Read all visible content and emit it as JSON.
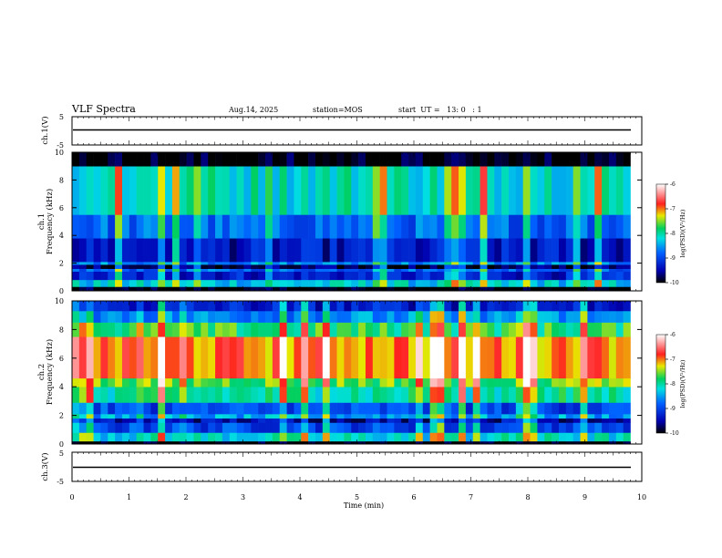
{
  "header": {
    "title": "VLF Spectra",
    "date": "Aug.14, 2025",
    "station": "station=MOS",
    "start_ut": "start  UT =   13: 0   : 1"
  },
  "chart_data": {
    "type": "heatmap",
    "xlabel": "Time (min)",
    "xlim": [
      0,
      10
    ],
    "x_ticks": [
      "0",
      "1",
      "2",
      "3",
      "4",
      "5",
      "6",
      "7",
      "8",
      "9",
      "10"
    ],
    "panels": [
      {
        "id": "ch1_waveform",
        "ylabel": "ch.1(V)",
        "ylim": [
          -5,
          5
        ],
        "y_ticks": [
          "5",
          "-5"
        ],
        "series": [
          {
            "x": [
              0,
              9.8
            ],
            "y": [
              0,
              0
            ]
          }
        ]
      },
      {
        "id": "ch1_spectrogram",
        "ylabel_line1": "ch.1",
        "ylabel_line2": "Frequency (kHz)",
        "ylim": [
          0,
          10
        ],
        "y_ticks": [
          "0",
          "2",
          "4",
          "6",
          "8",
          "10"
        ],
        "data_end_min": 9.8,
        "bands_khz": [
          {
            "range": [
              0,
              0.3
            ],
            "level": -10
          },
          {
            "range": [
              0.3,
              0.8
            ],
            "level": -8.3
          },
          {
            "range": [
              0.8,
              1.4
            ],
            "level": -9.3
          },
          {
            "range": [
              1.4,
              1.6
            ],
            "level": -8.8
          },
          {
            "range": [
              1.6,
              1.9
            ],
            "level": -9.8
          },
          {
            "range": [
              1.9,
              2.1
            ],
            "level": -8.6
          },
          {
            "range": [
              2.1,
              3.8
            ],
            "level": -9.4
          },
          {
            "range": [
              3.8,
              5.5
            ],
            "level": -8.8
          },
          {
            "range": [
              5.5,
              9.0
            ],
            "level": -8.1
          },
          {
            "range": [
              9.0,
              10
            ],
            "level": -10
          }
        ],
        "colorbar": {
          "label": "log(PSD)(V²/Hz)",
          "ticks": [
            "-6",
            "-7",
            "-8",
            "-9",
            "-10"
          ],
          "range": [
            -10,
            -6
          ]
        }
      },
      {
        "id": "ch2_spectrogram",
        "ylabel_line1": "ch.2",
        "ylabel_line2": "Frequency (kHz)",
        "ylim": [
          0,
          10
        ],
        "y_ticks": [
          "0",
          "2",
          "4",
          "6",
          "8",
          "10"
        ],
        "data_end_min": 9.8,
        "bands_khz": [
          {
            "range": [
              0,
              0.2
            ],
            "level": -10
          },
          {
            "range": [
              0.2,
              0.8
            ],
            "level": -8.2
          },
          {
            "range": [
              0.8,
              1.5
            ],
            "level": -9.0
          },
          {
            "range": [
              1.5,
              1.8
            ],
            "level": -9.5
          },
          {
            "range": [
              1.8,
              2.1
            ],
            "level": -8.5
          },
          {
            "range": [
              2.1,
              2.9
            ],
            "level": -9.0
          },
          {
            "range": [
              2.9,
              4.0
            ],
            "level": -8.0
          },
          {
            "range": [
              4.0,
              4.6
            ],
            "level": -7.6
          },
          {
            "range": [
              4.6,
              7.5
            ],
            "level": -7.0
          },
          {
            "range": [
              7.5,
              8.5
            ],
            "level": -7.8
          },
          {
            "range": [
              8.5,
              9.3
            ],
            "level": -8.6
          },
          {
            "range": [
              9.3,
              10
            ],
            "level": -9.3
          }
        ],
        "colorbar": {
          "label": "log(PSD)(V²/Hz)",
          "ticks": [
            "-6",
            "-7",
            "-8",
            "-9",
            "-10"
          ],
          "range": [
            -10,
            -6
          ]
        }
      },
      {
        "id": "ch3_waveform",
        "ylabel": "ch.3(V)",
        "ylim": [
          -5,
          5
        ],
        "y_ticks": [
          "5",
          "-5"
        ],
        "series": [
          {
            "x": [
              0,
              9.8
            ],
            "y": [
              0,
              0
            ]
          }
        ]
      }
    ]
  }
}
